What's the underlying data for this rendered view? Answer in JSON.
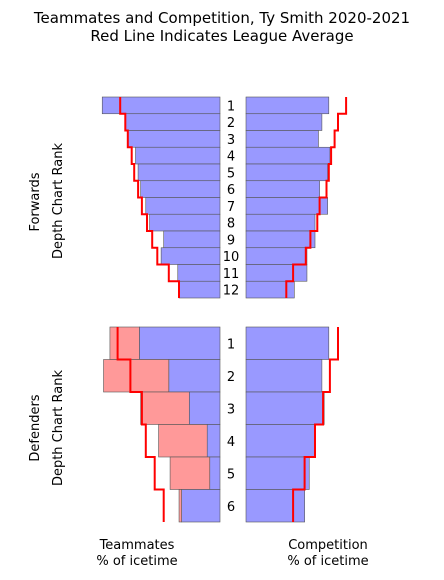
{
  "title_line1": "Teammates and Competition, Ty Smith 2020-2021",
  "title_line2": "Red Line Indicates League Average",
  "forwards_label": "Forwards",
  "defenders_label": "Defenders",
  "depth_label": "Depth Chart Rank",
  "teammates_label": "Teammates",
  "competition_label": "Competition",
  "pct_label": "% of icetime",
  "colors": {
    "fill": "#9999ff",
    "pair_fill": "#ff9999",
    "league_line": "#ff0000",
    "edge": "#555555"
  },
  "chart_data": [
    {
      "type": "bar",
      "name": "Forwards - Teammates",
      "categories": [
        "1",
        "2",
        "3",
        "4",
        "5",
        "6",
        "7",
        "8",
        "9",
        "10",
        "11",
        "12"
      ],
      "values": [
        0.92,
        0.74,
        0.72,
        0.66,
        0.64,
        0.62,
        0.58,
        0.55,
        0.44,
        0.46,
        0.33,
        0.32
      ],
      "league_average": [
        0.78,
        0.74,
        0.72,
        0.69,
        0.67,
        0.64,
        0.61,
        0.57,
        0.53,
        0.49,
        0.4,
        0.32
      ],
      "xlim": [
        0,
        1
      ],
      "direction": "leftward"
    },
    {
      "type": "bar",
      "name": "Forwards - Competition",
      "categories": [
        "1",
        "2",
        "3",
        "4",
        "5",
        "6",
        "7",
        "8",
        "9",
        "10",
        "11",
        "12"
      ],
      "values": [
        0.72,
        0.66,
        0.63,
        0.73,
        0.71,
        0.64,
        0.71,
        0.6,
        0.6,
        0.53,
        0.53,
        0.42
      ],
      "league_average": [
        0.87,
        0.8,
        0.77,
        0.74,
        0.72,
        0.7,
        0.64,
        0.62,
        0.56,
        0.52,
        0.41,
        0.35
      ],
      "xlim": [
        0,
        1
      ],
      "direction": "rightward"
    },
    {
      "type": "bar",
      "name": "Defenders - Teammates",
      "categories": [
        "1",
        "2",
        "3",
        "4",
        "5",
        "6"
      ],
      "values": [
        0.63,
        0.4,
        0.24,
        0.1,
        0.08,
        0.3
      ],
      "pair_values": [
        0.23,
        0.51,
        0.38,
        0.38,
        0.31,
        0.02
      ],
      "league_average": [
        0.8,
        0.7,
        0.61,
        0.58,
        0.51,
        0.44
      ],
      "xlim": [
        0,
        1
      ],
      "direction": "leftward"
    },
    {
      "type": "bar",
      "name": "Defenders - Competition",
      "categories": [
        "1",
        "2",
        "3",
        "4",
        "5",
        "6"
      ],
      "values": [
        0.72,
        0.66,
        0.68,
        0.6,
        0.55,
        0.51
      ],
      "league_average": [
        0.8,
        0.73,
        0.67,
        0.6,
        0.51,
        0.41
      ],
      "xlim": [
        0,
        1
      ],
      "direction": "rightward"
    }
  ]
}
